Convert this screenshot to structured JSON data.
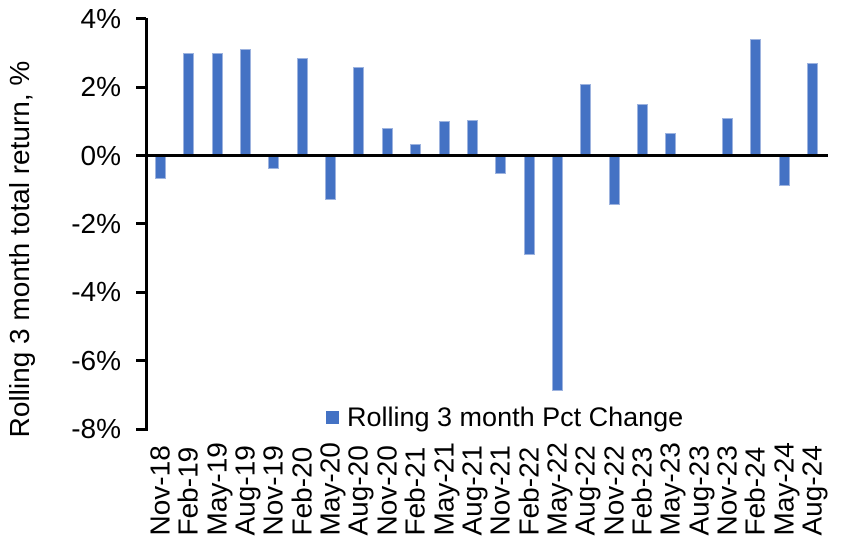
{
  "chart_data": {
    "type": "bar",
    "title": "",
    "ylabel": "Rolling 3 month total return, %",
    "xlabel": "",
    "legend_label": "Rolling 3 month Pct Change",
    "legend_position": "bottom-center",
    "grid": false,
    "categories": [
      "Nov-18",
      "Feb-19",
      "May-19",
      "Aug-19",
      "Nov-19",
      "Feb-20",
      "May-20",
      "Aug-20",
      "Nov-20",
      "Feb-21",
      "May-21",
      "Aug-21",
      "Nov-21",
      "Feb-22",
      "May-22",
      "Aug-22",
      "Nov-22",
      "Feb-23",
      "May-23",
      "Aug-23",
      "Nov-23",
      "Feb-24",
      "May-24",
      "Aug-24"
    ],
    "values": [
      -0.7,
      3.0,
      3.0,
      3.1,
      -0.4,
      2.85,
      -1.3,
      2.6,
      0.8,
      0.35,
      1.0,
      1.05,
      -0.55,
      -2.9,
      -6.9,
      2.1,
      -1.45,
      1.5,
      0.65,
      0.0,
      1.1,
      3.4,
      -0.9,
      2.7
    ],
    "y_tick_labels": [
      "4%",
      "2%",
      "0%",
      "-2%",
      "-4%",
      "-6%",
      "-8%"
    ],
    "y_tick_values": [
      4,
      2,
      0,
      -2,
      -4,
      -6,
      -8
    ],
    "ylim": [
      -8,
      4
    ],
    "bar_color": "#4472C4",
    "bar_border_color": "#9DB3DF",
    "axis_color": "#000000",
    "text_color": "#000000"
  }
}
